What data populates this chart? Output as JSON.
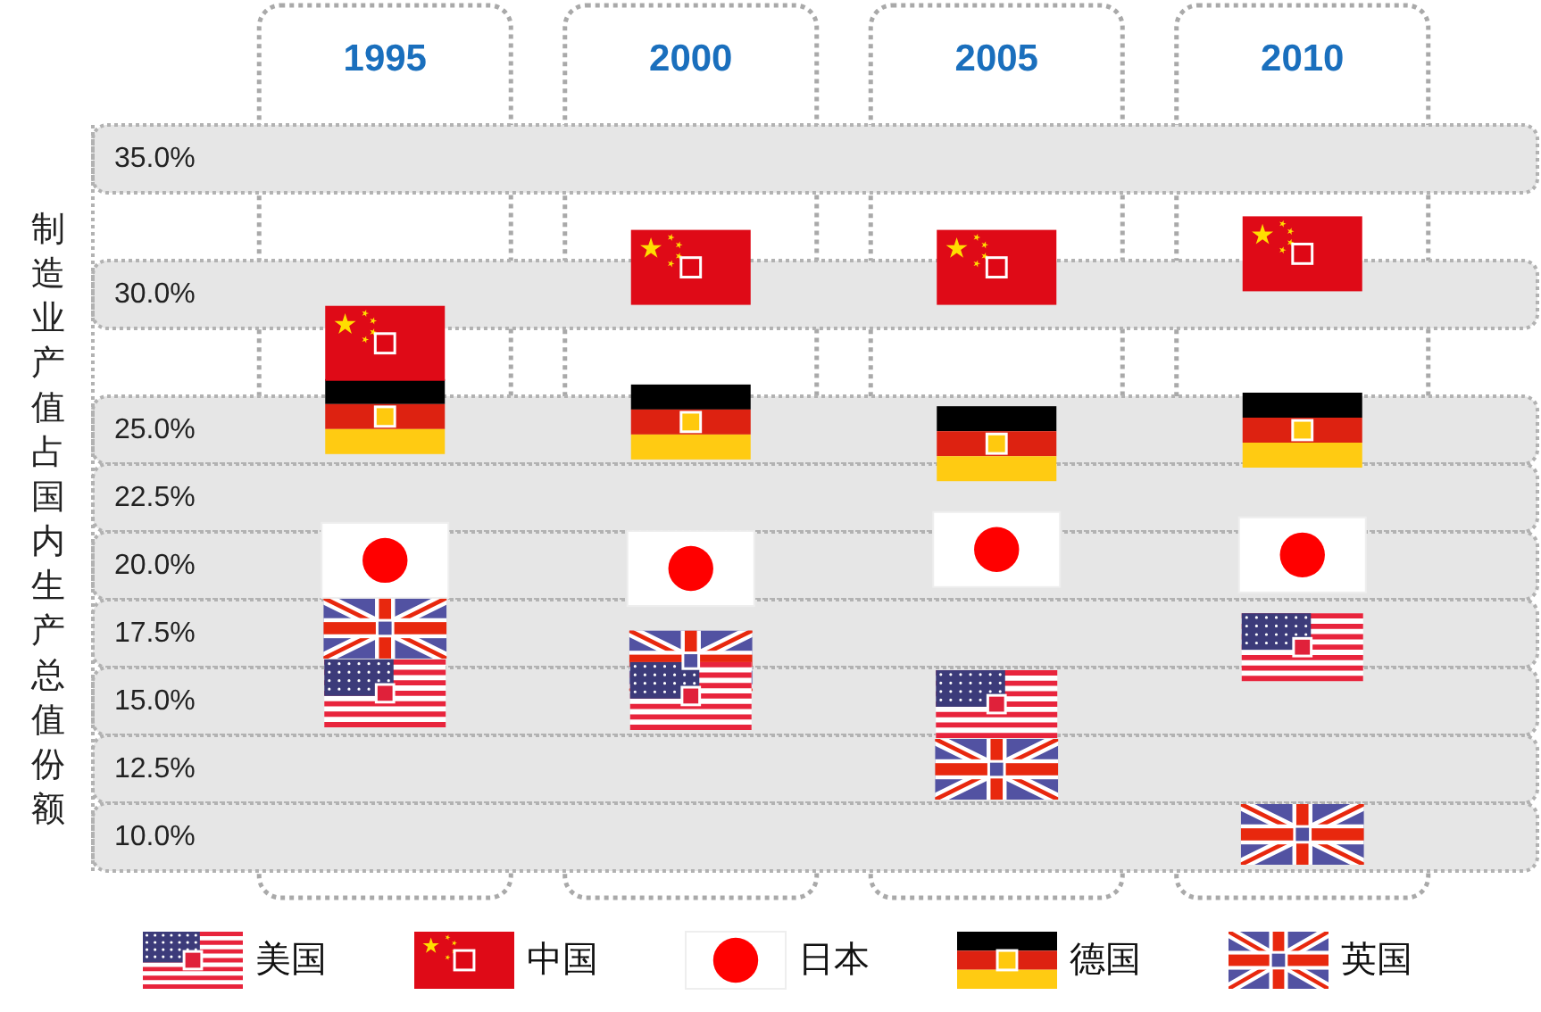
{
  "chart_data": {
    "type": "scatter",
    "ylabel": "制造业产值占国内生产总值份额",
    "categories": [
      "1995",
      "2000",
      "2005",
      "2010"
    ],
    "ylim": [
      8.75,
      36.25
    ],
    "yticks": [
      {
        "value": 35,
        "label": "35.0%"
      },
      {
        "value": 30,
        "label": "30.0%"
      },
      {
        "value": 25,
        "label": "25.0%"
      },
      {
        "value": 22.5,
        "label": "22.5%"
      },
      {
        "value": 20,
        "label": "20.0%"
      },
      {
        "value": 17.5,
        "label": "17.5%"
      },
      {
        "value": 15,
        "label": "15.0%"
      },
      {
        "value": 12.5,
        "label": "12.5%"
      },
      {
        "value": 10,
        "label": "10.0%"
      }
    ],
    "bands": [
      {
        "axis": "x",
        "from": "1995",
        "to": "1995",
        "color": "#ffffff"
      },
      {
        "axis": "x",
        "from": "2000",
        "to": "2000",
        "color": "#ffffff"
      },
      {
        "axis": "x",
        "from": "2005",
        "to": "2005",
        "color": "#ffffff"
      },
      {
        "axis": "x",
        "from": "2010",
        "to": "2010",
        "color": "#ffffff"
      },
      {
        "axis": "y",
        "from": 33.75,
        "to": 36.25,
        "color": "#e6e6e6"
      },
      {
        "axis": "y",
        "from": 28.75,
        "to": 31.25,
        "color": "#e6e6e6"
      },
      {
        "axis": "y",
        "from": 23.75,
        "to": 26.25,
        "color": "#e6e6e6"
      },
      {
        "axis": "y",
        "from": 21.25,
        "to": 23.75,
        "color": "#e6e6e6"
      },
      {
        "axis": "y",
        "from": 18.75,
        "to": 21.25,
        "color": "#e6e6e6"
      },
      {
        "axis": "y",
        "from": 16.25,
        "to": 18.75,
        "color": "#e6e6e6"
      },
      {
        "axis": "y",
        "from": 13.75,
        "to": 16.25,
        "color": "#e6e6e6"
      },
      {
        "axis": "y",
        "from": 11.25,
        "to": 13.75,
        "color": "#e6e6e6"
      },
      {
        "axis": "y",
        "from": 8.75,
        "to": 11.25,
        "color": "#e6e6e6"
      }
    ],
    "legend": "bottom",
    "series": [
      {
        "name": "美国",
        "color": "#e0213a",
        "values": [
          15.3,
          15.2,
          14.9,
          17.0
        ]
      },
      {
        "name": "中国",
        "color": "#de0715",
        "values": [
          28.2,
          31.0,
          31.0,
          31.5
        ]
      },
      {
        "name": "日本",
        "color": "#ff0000",
        "values": [
          20.2,
          19.9,
          20.6,
          20.4
        ]
      },
      {
        "name": "德国",
        "color": "#ffc90e",
        "values": [
          25.5,
          25.3,
          24.5,
          25.0
        ]
      },
      {
        "name": "英国",
        "color": "#5050a0",
        "values": [
          17.7,
          16.5,
          12.5,
          10.1
        ]
      }
    ]
  }
}
